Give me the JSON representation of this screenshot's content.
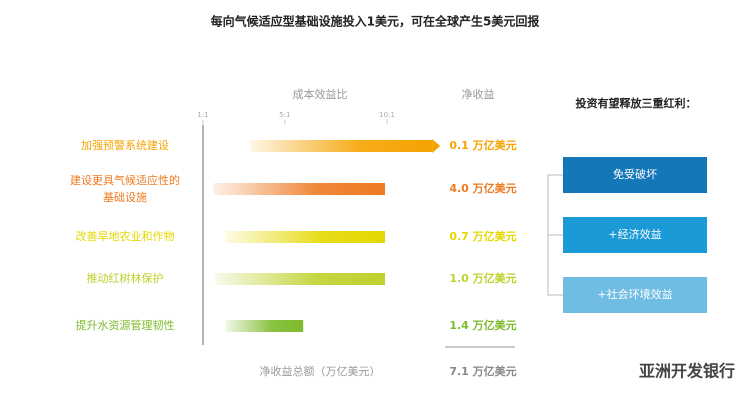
{
  "chart_data": {
    "type": "range_bar",
    "title": "每向气候适应型基础设施投入1美元，可在全球产生5美元回报",
    "xlabel": "成本效益比",
    "net_header": "净收益",
    "categories": [
      "加强预警系统建设",
      "建设更具气候适应性的基础设施",
      "改善旱地农业和作物",
      "推动红树林保护",
      "提升水资源管理韧性"
    ],
    "ranges": [
      [
        3.3,
        12.6
      ],
      [
        1.5,
        9.9
      ],
      [
        2.1,
        9.9
      ],
      [
        1.6,
        9.9
      ],
      [
        2.1,
        5.9
      ]
    ],
    "open_ended": [
      true,
      false,
      false,
      false,
      false
    ],
    "colors": [
      "#f5a300",
      "#ee7a22",
      "#e5d800",
      "#bed12d",
      "#7dbb2c"
    ],
    "net_benefits": [
      "0.1 万亿美元",
      "4.0 万亿美元",
      "0.7 万亿美元",
      "1.0 万亿美元",
      "1.4 万亿美元"
    ],
    "total_label": "净收益总额（万亿美元）",
    "total": "7.1 万亿美元",
    "xlim": [
      1,
      13
    ],
    "xticks": [
      {
        "value": 1,
        "label": "1:1"
      },
      {
        "value": 5,
        "label": "5:1"
      },
      {
        "value": 10,
        "label": "10:1"
      }
    ],
    "benefits_title": "投资有望释放三重红利：",
    "benefits": [
      {
        "label": "免受破坏",
        "color": "#1377b8"
      },
      {
        "label": "+经济效益",
        "color": "#1a9ad6"
      },
      {
        "label": "+社会环境效益",
        "color": "#6fbde3"
      }
    ],
    "watermark": "亚洲开发银行"
  }
}
